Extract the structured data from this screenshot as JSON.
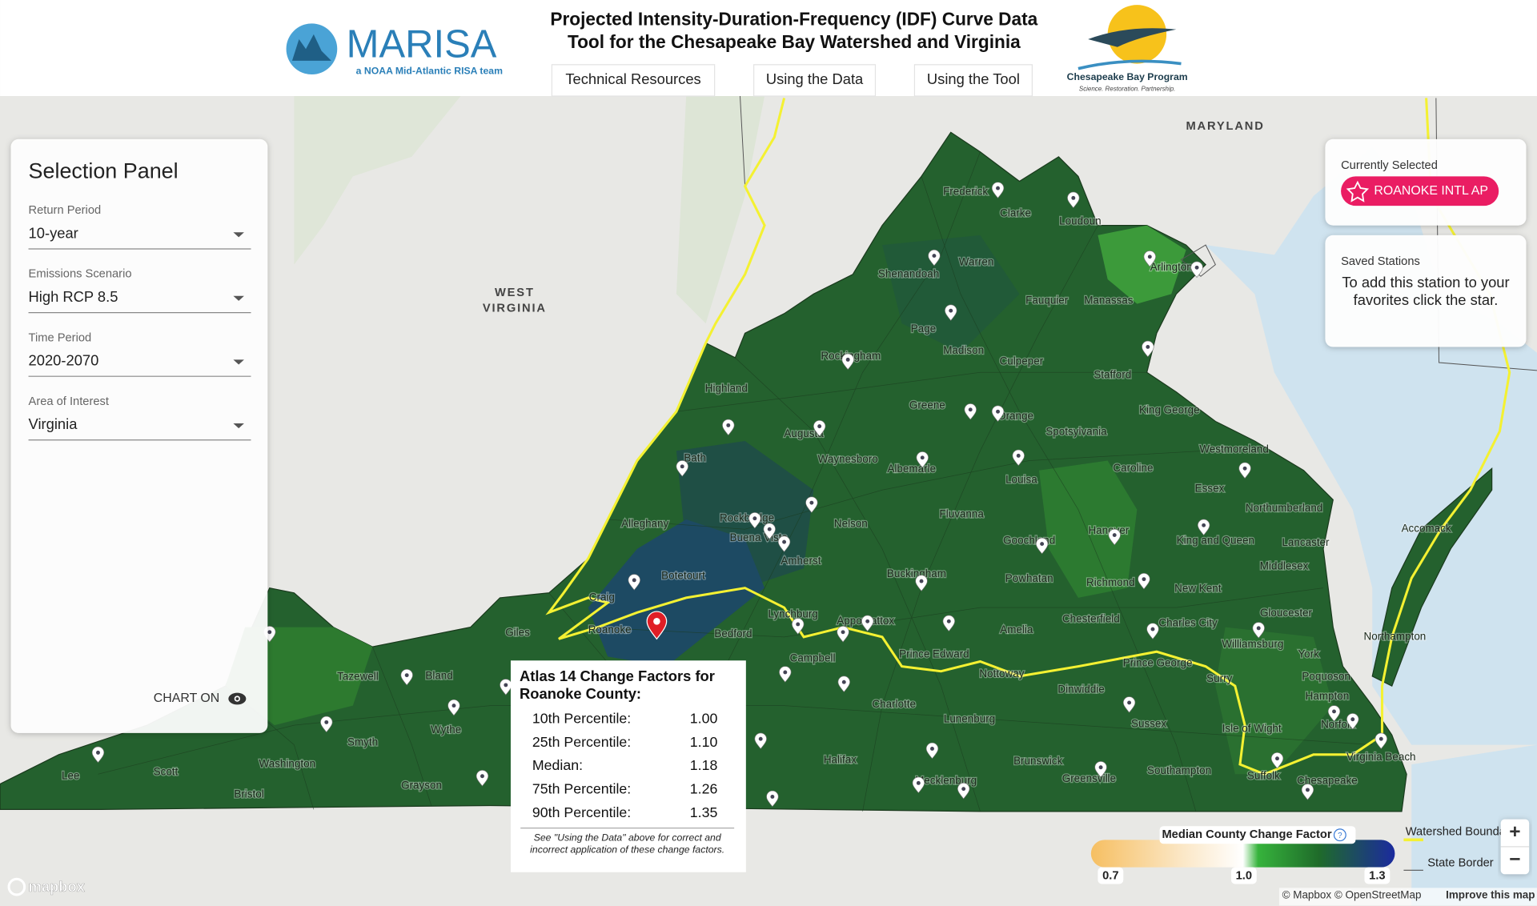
{
  "header": {
    "logo": "MARISA",
    "logo_tagline": "a NOAA Mid-Atlantic RISA team",
    "title": [
      "Projected Intensity-Duration-Frequency (IDF) Curve Data",
      "Tool for the Chesapeake Bay Watershed and Virginia"
    ],
    "nav": [
      "Technical Resources",
      "Using the Data",
      "Using the Tool"
    ],
    "partner": "Chesapeake Bay Program",
    "partner_tagline": "Science. Restoration. Partnership."
  },
  "selection_panel": {
    "title": "Selection Panel",
    "fields": [
      {
        "label": "Return Period",
        "value": "10-year"
      },
      {
        "label": "Emissions Scenario",
        "value": "High RCP 8.5"
      },
      {
        "label": "Time Period",
        "value": "2020-2070"
      },
      {
        "label": "Area of Interest",
        "value": "Virginia"
      }
    ],
    "chart_toggle": "CHART ON"
  },
  "currently_selected": {
    "label": "Currently Selected",
    "station": "ROANOKE INTL AP"
  },
  "saved_stations": {
    "label": "Saved Stations",
    "message": "To add this station to your favorites click the star."
  },
  "map": {
    "state_labels": [
      "MARYLAND",
      "WEST",
      "VIRGINIA"
    ],
    "county_labels": [
      "Frederick",
      "Clarke",
      "Loudoun",
      "Shenandoah",
      "Warren",
      "Arlington",
      "Fauquier",
      "Manassas",
      "Page",
      "Rockingham",
      "Madison",
      "Culpeper",
      "Stafford",
      "Highland",
      "Greene",
      "Orange",
      "King George",
      "Augusta",
      "Spotsylvania",
      "Westmoreland",
      "Bath",
      "Waynesboro",
      "Albemarle",
      "Louisa",
      "Caroline",
      "Essex",
      "Northumberland",
      "Rockbridge",
      "Nelson",
      "Fluvanna",
      "Alleghany",
      "Buena Vista",
      "Goochland",
      "Hanover",
      "King and Queen",
      "Accomack",
      "Lancaster",
      "Amherst",
      "Middlesex",
      "Botetourt",
      "Buckingham",
      "Powhatan",
      "Richmond",
      "New Kent",
      "Craig",
      "Gloucester",
      "Lynchburg",
      "Appomattox",
      "Chesterfield",
      "Charles City",
      "Giles",
      "Roanoke",
      "Bedford",
      "Amelia",
      "Williamsburg",
      "Northampton",
      "Prince Edward",
      "Campbell",
      "York",
      "Prince George",
      "Surry",
      "Nottoway",
      "Poquoson",
      "Tazewell",
      "Bland",
      "Dinwiddie",
      "Hampton",
      "Wythe",
      "Charlotte",
      "Lunenburg",
      "Sussex",
      "Isle of Wight",
      "Norfolk",
      "Smyth",
      "Halifax",
      "Virginia Beach",
      "Washington",
      "Scott",
      "Brunswick",
      "Greensville",
      "Southampton",
      "Suffolk",
      "Chesapeake",
      "Lee",
      "Grayson",
      "Mecklenburg",
      "Bristol"
    ]
  },
  "popup": {
    "title": "Atlas 14 Change Factors for Roanoke County:",
    "rows": [
      [
        "10th Percentile:",
        "1.00"
      ],
      [
        "25th Percentile:",
        "1.10"
      ],
      [
        "Median:",
        "1.18"
      ],
      [
        "75th Percentile:",
        "1.26"
      ],
      [
        "90th Percentile:",
        "1.35"
      ]
    ],
    "note": "See \"Using the Data\" above for correct and incorrect application of these change factors."
  },
  "legend": {
    "title": "Median County Change Factor",
    "range": [
      0.7,
      1.3
    ],
    "ticks": [
      0.7,
      {
        "value": 1,
        "label": "1.0"
      },
      1.3
    ],
    "lines": [
      "Watershed Boundary",
      "State Border"
    ]
  },
  "attribution": {
    "logo": "mapbox",
    "text": "© Mapbox © OpenStreetMap",
    "link": "Improve this map"
  }
}
